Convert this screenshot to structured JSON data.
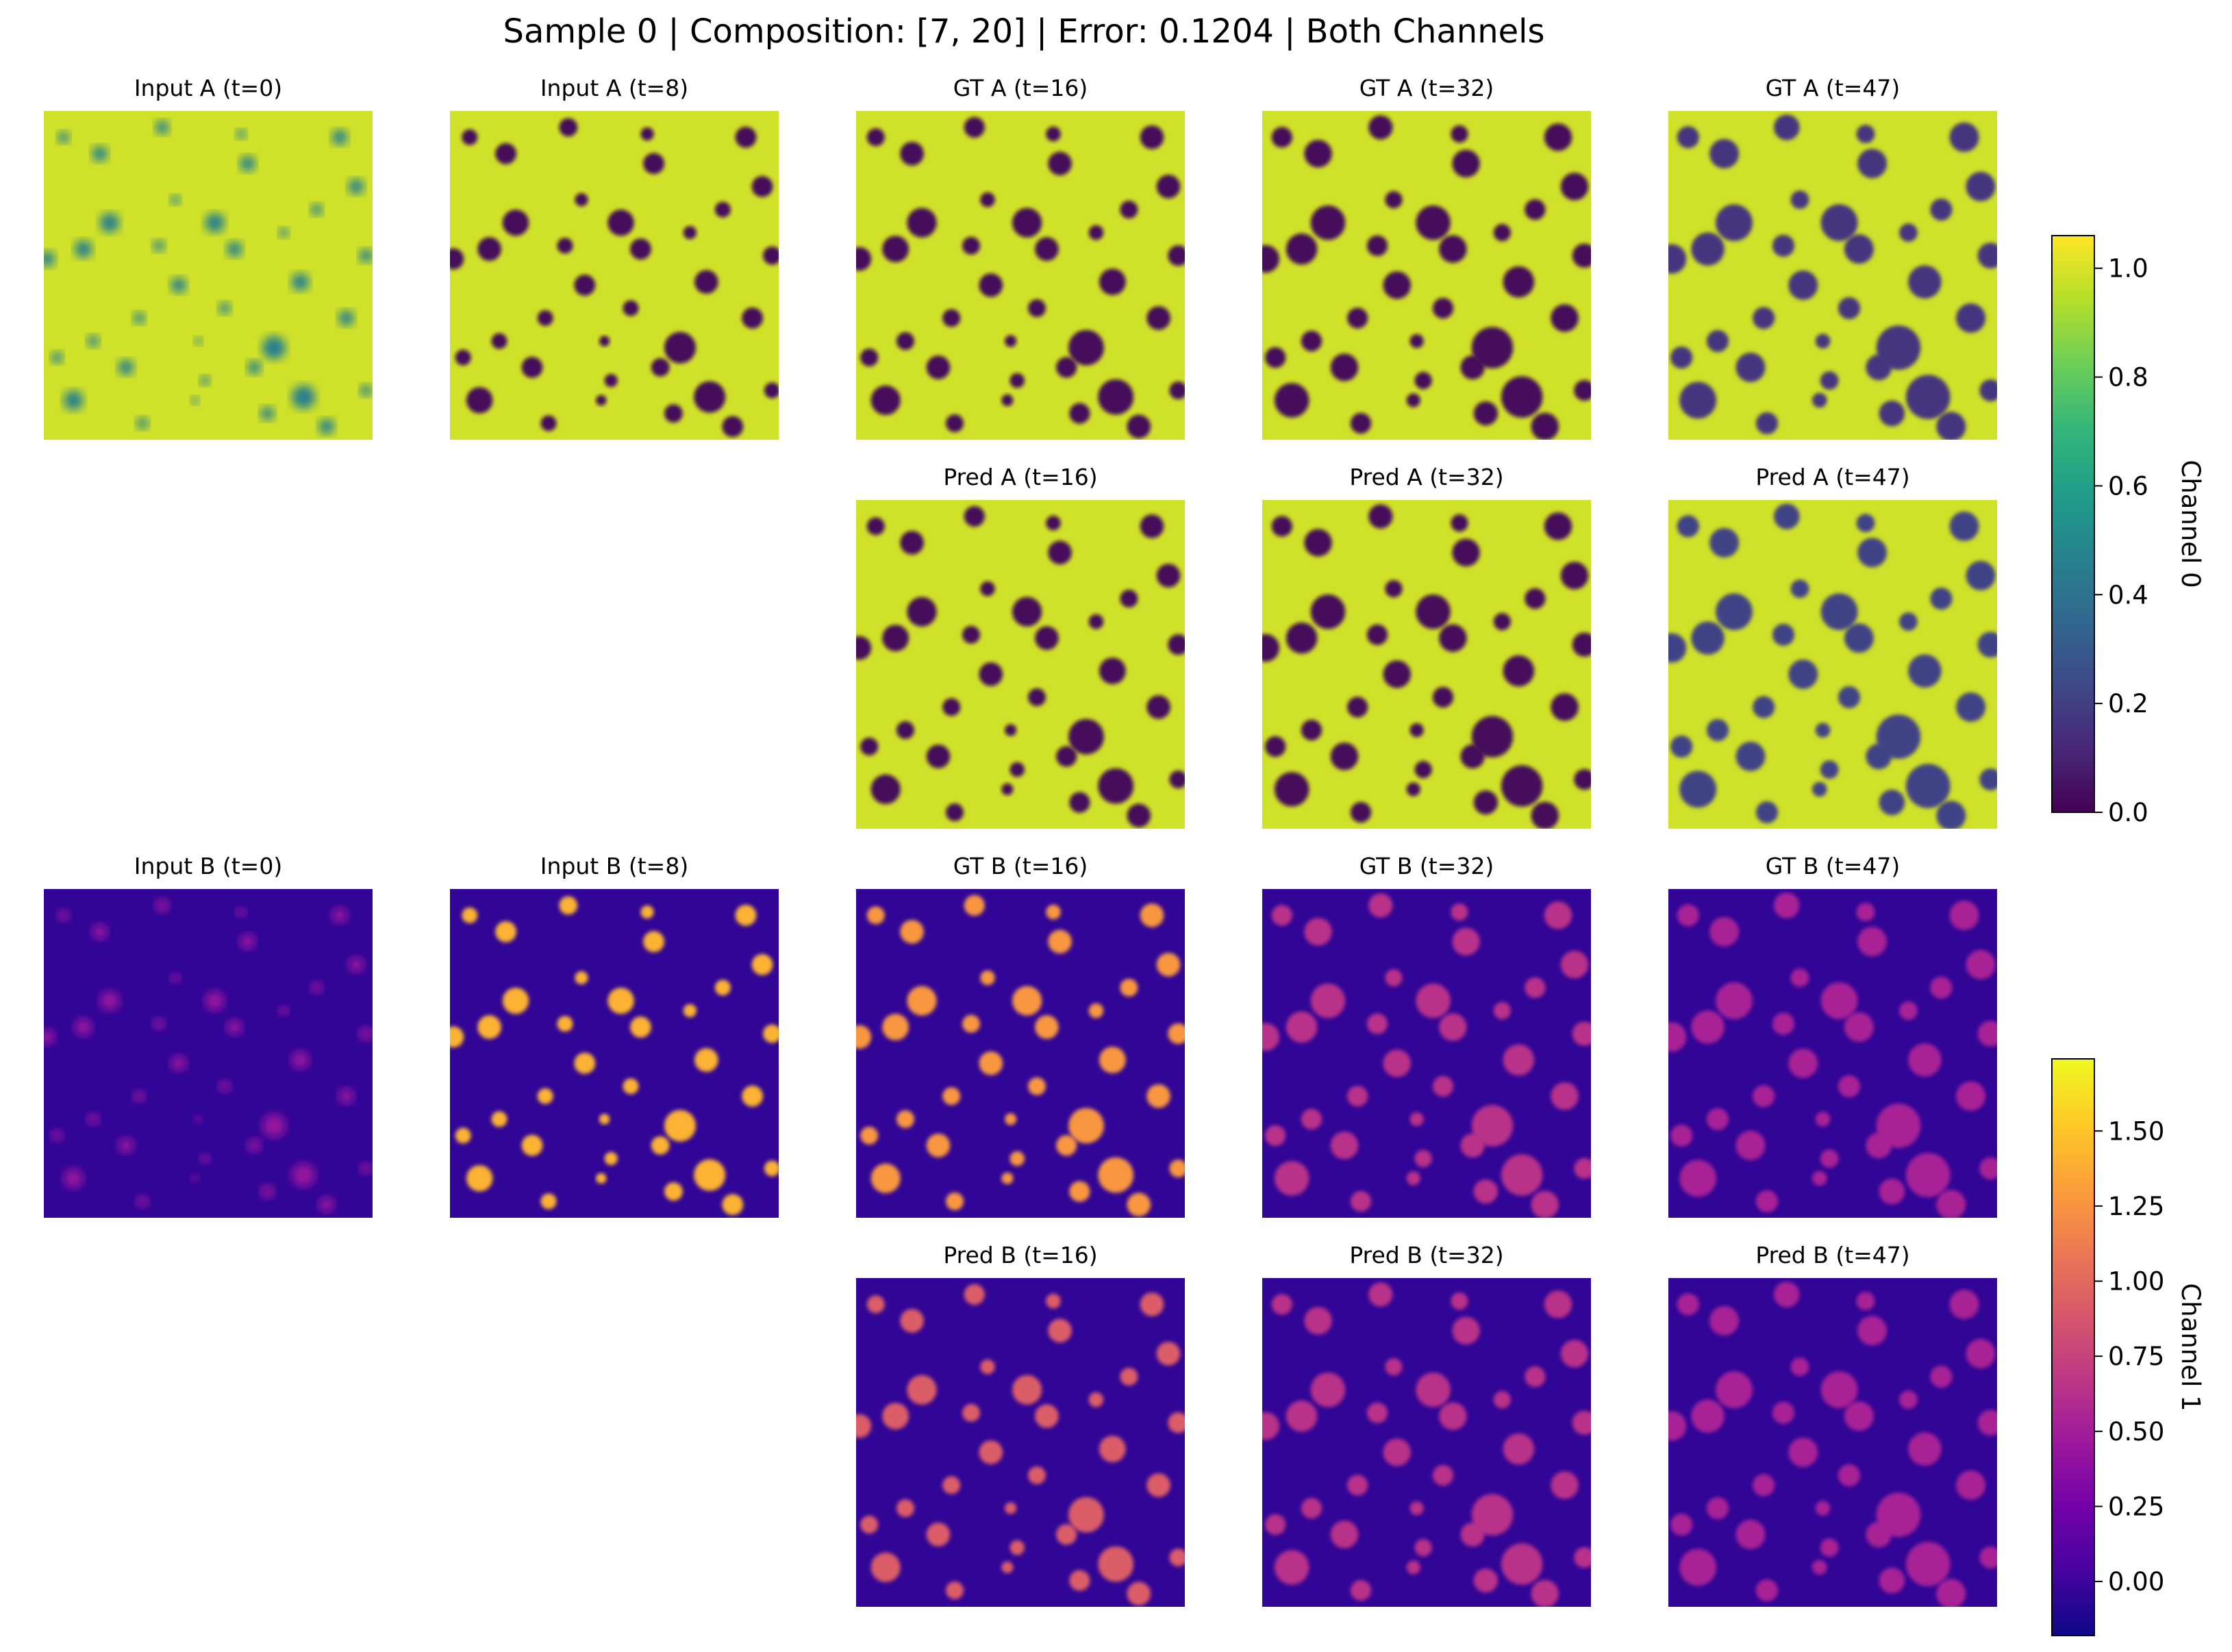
{
  "title": "Sample 0 | Composition: [7, 20] | Error: 0.1204 | Both Channels",
  "colors": {
    "background": "#ffffff",
    "text": "#000000"
  },
  "chart_data": {
    "type": "heatmap",
    "panels": [
      {
        "id": "input-a-t0",
        "title": "Input A (t=0)",
        "channel": 0,
        "colormap": "viridis",
        "blob_radius": 0.6,
        "blob_intensity": 0.55
      },
      {
        "id": "input-a-t8",
        "title": "Input A (t=8)",
        "channel": 0,
        "colormap": "viridis",
        "blob_radius": 0.8,
        "blob_intensity": 1.0
      },
      {
        "id": "gt-a-t16",
        "title": "GT A (t=16)",
        "channel": 0,
        "colormap": "viridis",
        "blob_radius": 0.9,
        "blob_intensity": 1.0
      },
      {
        "id": "gt-a-t32",
        "title": "GT A (t=32)",
        "channel": 0,
        "colormap": "viridis",
        "blob_radius": 1.05,
        "blob_intensity": 1.0
      },
      {
        "id": "gt-a-t47",
        "title": "GT A (t=47)",
        "channel": 0,
        "colormap": "viridis",
        "blob_radius": 1.12,
        "blob_intensity": 0.85
      },
      {
        "id": "pred-a-t16",
        "title": "Pred A (t=16)",
        "channel": 0,
        "colormap": "viridis",
        "blob_radius": 0.9,
        "blob_intensity": 1.0
      },
      {
        "id": "pred-a-t32",
        "title": "Pred A (t=32)",
        "channel": 0,
        "colormap": "viridis",
        "blob_radius": 1.05,
        "blob_intensity": 1.0
      },
      {
        "id": "pred-a-t47",
        "title": "Pred A (t=47)",
        "channel": 0,
        "colormap": "viridis",
        "blob_radius": 1.12,
        "blob_intensity": 0.8
      },
      {
        "id": "input-b-t0",
        "title": "Input B (t=0)",
        "channel": 1,
        "colormap": "plasma",
        "blob_radius": 0.6,
        "blob_intensity": 0.35
      },
      {
        "id": "input-b-t8",
        "title": "Input B (t=8)",
        "channel": 1,
        "colormap": "plasma",
        "blob_radius": 0.8,
        "blob_intensity": 1.05
      },
      {
        "id": "gt-b-t16",
        "title": "GT B (t=16)",
        "channel": 1,
        "colormap": "plasma",
        "blob_radius": 0.9,
        "blob_intensity": 0.95
      },
      {
        "id": "gt-b-t32",
        "title": "GT B (t=32)",
        "channel": 1,
        "colormap": "plasma",
        "blob_radius": 1.05,
        "blob_intensity": 0.5
      },
      {
        "id": "gt-b-t47",
        "title": "GT B (t=47)",
        "channel": 1,
        "colormap": "plasma",
        "blob_radius": 1.12,
        "blob_intensity": 0.42
      },
      {
        "id": "pred-b-t16",
        "title": "Pred B (t=16)",
        "channel": 1,
        "colormap": "plasma",
        "blob_radius": 0.9,
        "blob_intensity": 0.7
      },
      {
        "id": "pred-b-t32",
        "title": "Pred B (t=32)",
        "channel": 1,
        "colormap": "plasma",
        "blob_radius": 1.05,
        "blob_intensity": 0.5
      },
      {
        "id": "pred-b-t47",
        "title": "Pred B (t=47)",
        "channel": 1,
        "colormap": "plasma",
        "blob_radius": 1.12,
        "blob_intensity": 0.42
      }
    ],
    "colorbars": [
      {
        "id": "channel-0",
        "label": "Channel 0",
        "colormap": "viridis",
        "range": [
          0.0,
          1.06
        ],
        "ticks": [
          0.0,
          0.2,
          0.4,
          0.6,
          0.8,
          1.0
        ],
        "tick_labels": [
          "0.0",
          "0.2",
          "0.4",
          "0.6",
          "0.8",
          "1.0"
        ]
      },
      {
        "id": "channel-1",
        "label": "Channel 1",
        "colormap": "plasma",
        "range": [
          -0.18,
          1.74
        ],
        "ticks": [
          0.0,
          0.25,
          0.5,
          0.75,
          1.0,
          1.25,
          1.5
        ],
        "tick_labels": [
          "0.00",
          "0.25",
          "0.50",
          "0.75",
          "1.00",
          "1.25",
          "1.50"
        ]
      }
    ],
    "blobs": [
      [
        0.06,
        0.08,
        0.03
      ],
      [
        0.12,
        0.42,
        0.045
      ],
      [
        0.17,
        0.13,
        0.04
      ],
      [
        0.2,
        0.34,
        0.05
      ],
      [
        0.29,
        0.63,
        0.03
      ],
      [
        0.36,
        0.05,
        0.035
      ],
      [
        0.4,
        0.27,
        0.025
      ],
      [
        0.41,
        0.53,
        0.04
      ],
      [
        0.47,
        0.7,
        0.02
      ],
      [
        0.49,
        0.82,
        0.025
      ],
      [
        0.52,
        0.34,
        0.05
      ],
      [
        0.58,
        0.42,
        0.04
      ],
      [
        0.62,
        0.16,
        0.04
      ],
      [
        0.64,
        0.78,
        0.035
      ],
      [
        0.7,
        0.72,
        0.06
      ],
      [
        0.73,
        0.37,
        0.025
      ],
      [
        0.78,
        0.52,
        0.045
      ],
      [
        0.83,
        0.3,
        0.03
      ],
      [
        0.9,
        0.08,
        0.04
      ],
      [
        0.95,
        0.23,
        0.04
      ],
      [
        0.04,
        0.75,
        0.03
      ],
      [
        0.09,
        0.88,
        0.05
      ],
      [
        0.15,
        0.7,
        0.03
      ],
      [
        0.25,
        0.78,
        0.04
      ],
      [
        0.3,
        0.95,
        0.03
      ],
      [
        0.46,
        0.88,
        0.02
      ],
      [
        0.55,
        0.6,
        0.03
      ],
      [
        0.68,
        0.92,
        0.035
      ],
      [
        0.79,
        0.87,
        0.06
      ],
      [
        0.86,
        0.96,
        0.04
      ],
      [
        0.92,
        0.63,
        0.04
      ],
      [
        0.98,
        0.44,
        0.035
      ],
      [
        0.35,
        0.41,
        0.03
      ],
      [
        0.6,
        0.07,
        0.025
      ],
      [
        0.01,
        0.45,
        0.04
      ],
      [
        0.98,
        0.85,
        0.03
      ]
    ]
  }
}
